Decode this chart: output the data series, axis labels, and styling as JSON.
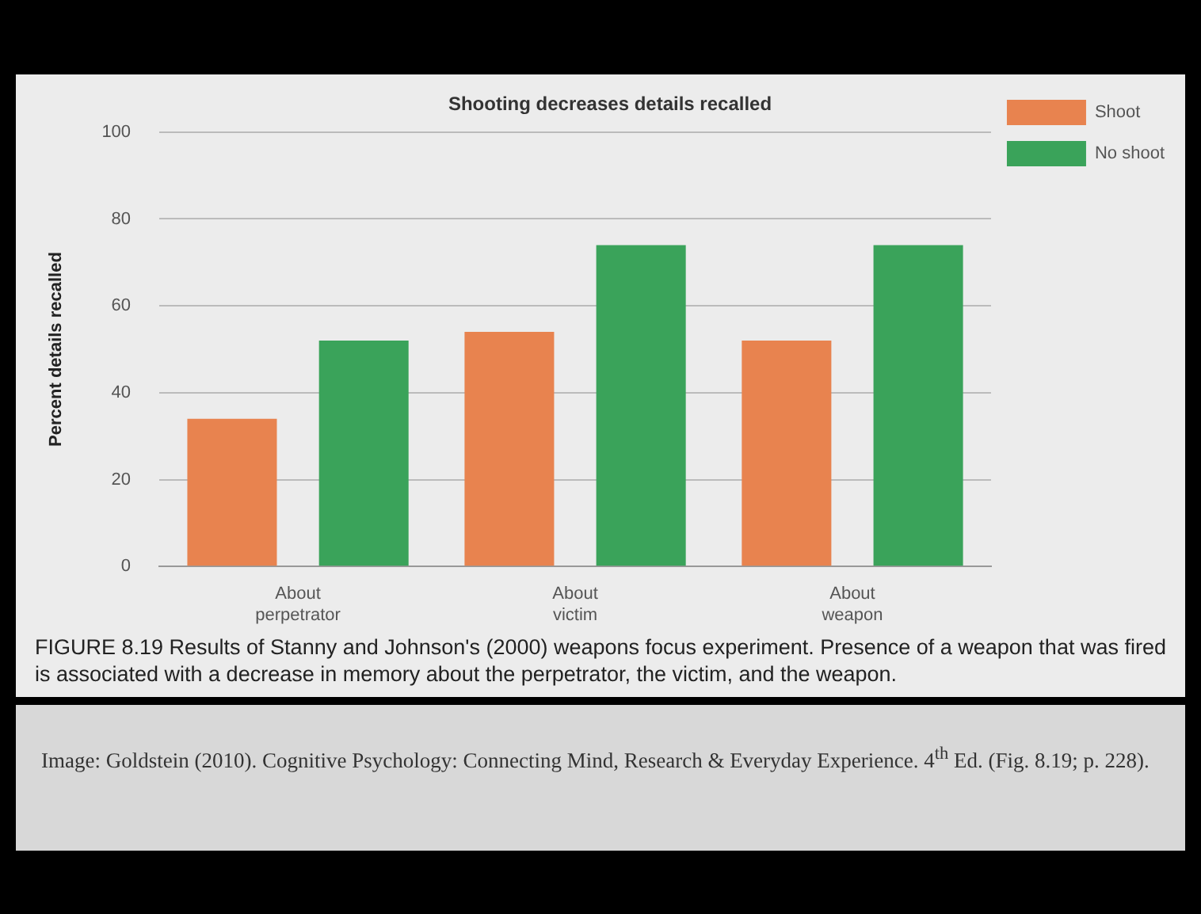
{
  "chart_data": {
    "type": "bar",
    "title": "Shooting decreases details recalled",
    "ylabel": "Percent details recalled",
    "categories": [
      "About perpetrator",
      "About victim",
      "About weapon"
    ],
    "series": [
      {
        "name": "Shoot",
        "color": "#e8834f",
        "values": [
          34,
          54,
          52
        ]
      },
      {
        "name": "No shoot",
        "color": "#3aa35a",
        "values": [
          52,
          74,
          74
        ]
      }
    ],
    "ylim": [
      0,
      100
    ],
    "yticks": [
      0,
      20,
      40,
      60,
      80,
      100
    ],
    "grid": "y",
    "legend": "top right",
    "annotations": [
      "FIGURE 8.19 Results of Stanny and Johnson's (2000) weapons focus experiment. Presence of a weapon that was fired is associated with a decrease in memory about the perpetrator, the victim, and the weapon.",
      "Image: Goldstein (2010). Cognitive Psychology: Connecting Mind, Research & Everyday Experience. 4$^{th}$ Ed. (Fig. 8.19; p. 228)."
    ]
  }
}
